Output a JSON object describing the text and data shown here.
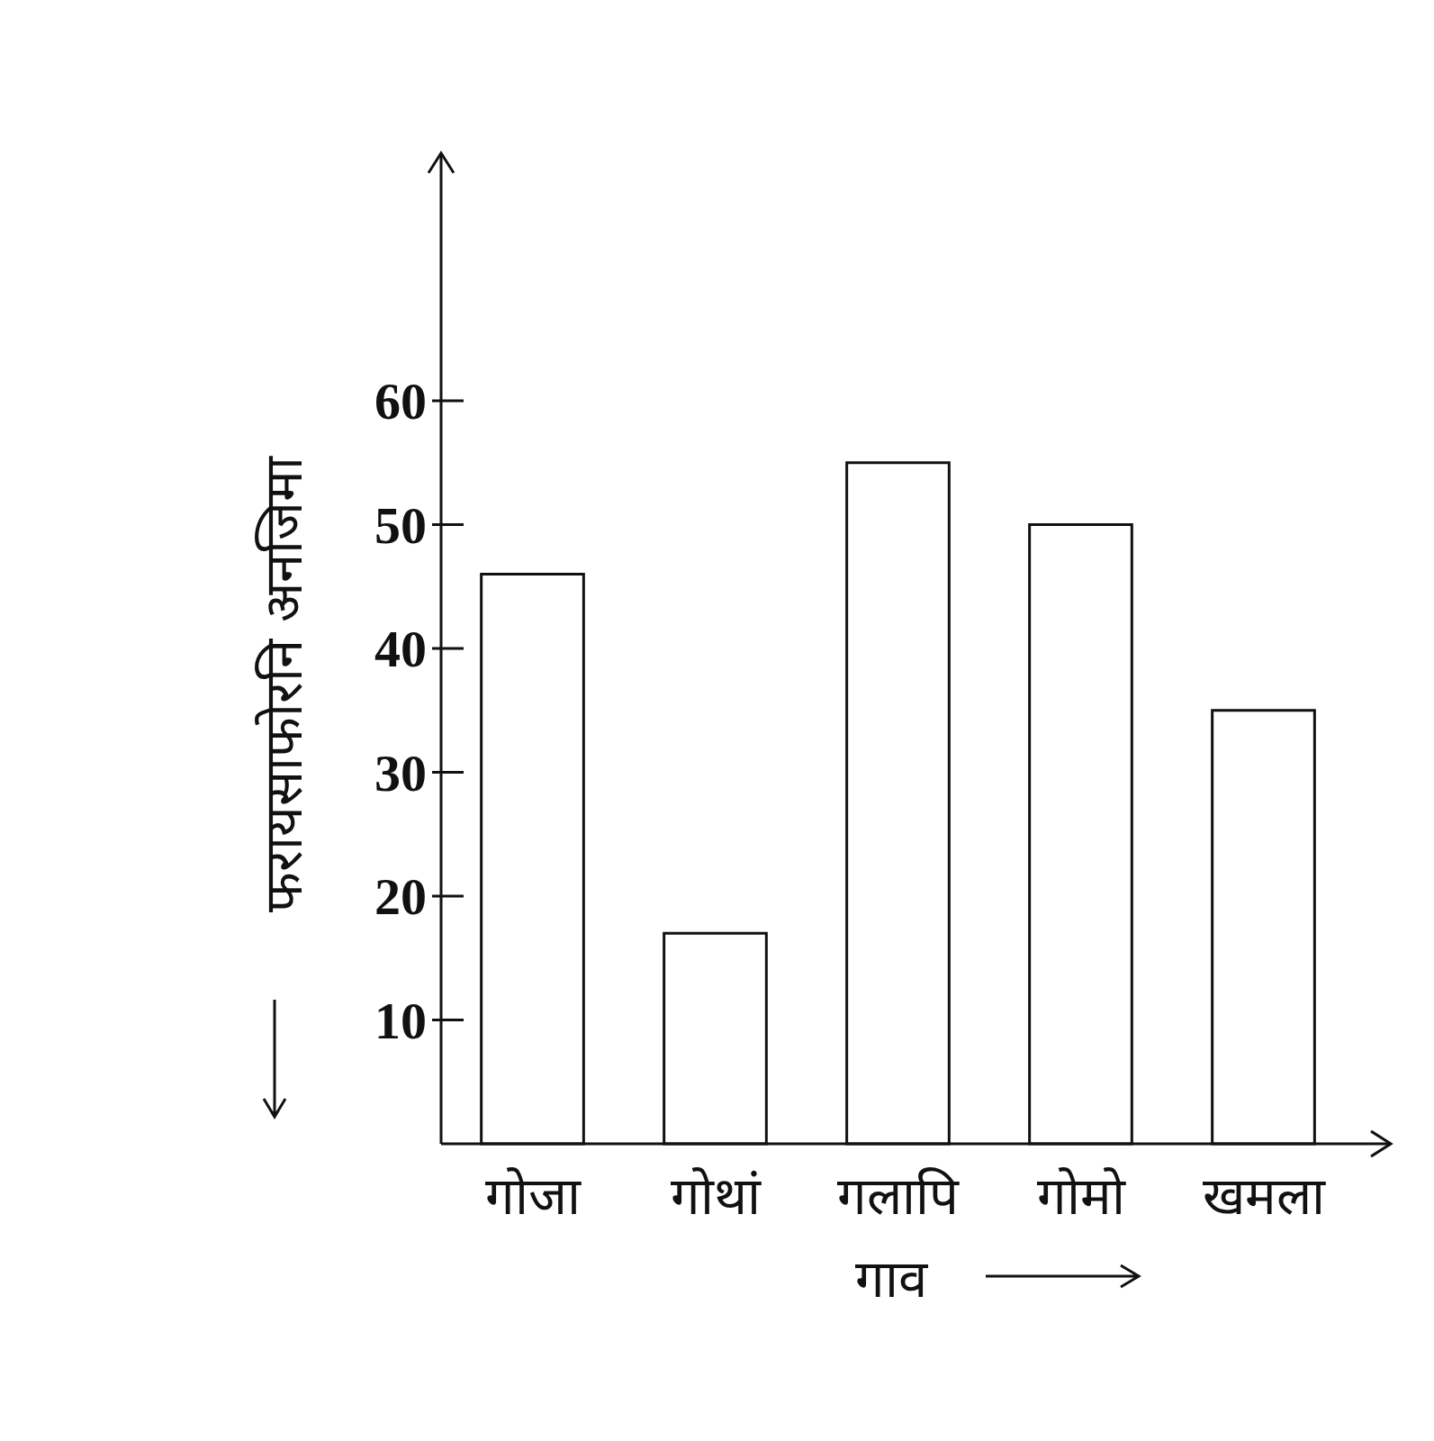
{
  "chart_data": {
    "type": "bar",
    "xlabel": "गाव",
    "ylabel": "फरायसाफोरनि अनजिमा",
    "categories": [
      "गोजा",
      "गोथां",
      "गलापि",
      "गोमो",
      "खमला"
    ],
    "values": [
      46,
      17,
      55,
      50,
      35
    ],
    "color": "#ffffff",
    "ylim": [
      0,
      80
    ],
    "yticks": [
      10,
      20,
      30,
      40,
      50,
      60
    ],
    "grid": false
  }
}
